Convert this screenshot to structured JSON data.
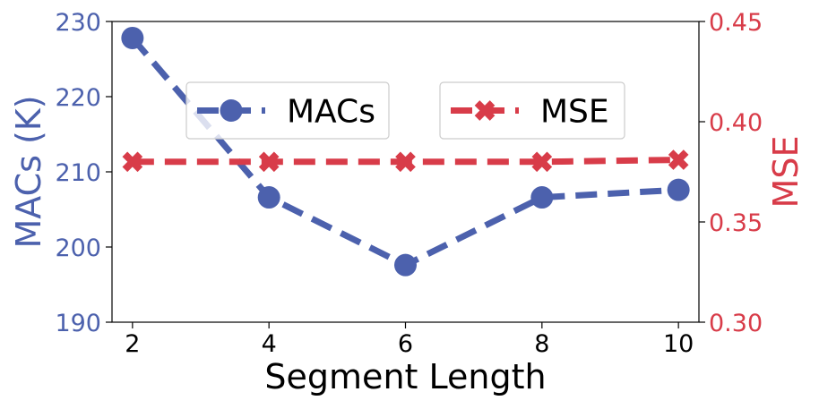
{
  "chart_data": {
    "type": "line",
    "xlabel": "Segment Length",
    "x": [
      2,
      4,
      6,
      8,
      10
    ],
    "xlim": [
      1.7,
      10.3
    ],
    "x_ticks": [
      "2",
      "4",
      "6",
      "8",
      "10"
    ],
    "left_axis": {
      "label": "MACs (K)",
      "ylim": [
        190,
        230
      ],
      "ticks": [
        "190",
        "200",
        "210",
        "220",
        "230"
      ],
      "color": "#4c61ad"
    },
    "right_axis": {
      "label": "MSE",
      "ylim": [
        0.3,
        0.45
      ],
      "ticks": [
        "0.30",
        "0.35",
        "0.40",
        "0.45"
      ],
      "color": "#d83c49"
    },
    "series": [
      {
        "name": "MACs",
        "axis": "left",
        "values": [
          227.8,
          206.6,
          197.6,
          206.6,
          207.6
        ],
        "color": "#4c61ad",
        "marker": "circle",
        "line_style": "dashed"
      },
      {
        "name": "MSE",
        "axis": "right",
        "values": [
          0.38,
          0.38,
          0.38,
          0.38,
          0.381
        ],
        "color": "#d83c49",
        "marker": "x",
        "line_style": "dashed"
      }
    ],
    "legend": "top-center",
    "grid": false
  }
}
